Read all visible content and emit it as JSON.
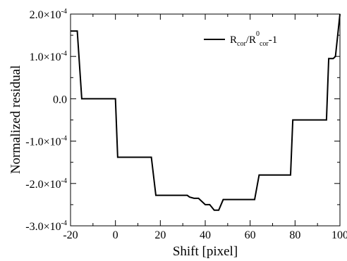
{
  "chart_data": {
    "type": "line",
    "title": "",
    "xlabel": "Shift [pixel]",
    "ylabel": "Normalized residual",
    "xlim": [
      -20,
      100
    ],
    "ylim": [
      -0.0003,
      0.0002
    ],
    "grid": false,
    "legend_position": "top-right",
    "x_ticks": [
      {
        "value": -20,
        "label": "-20"
      },
      {
        "value": 0,
        "label": "0"
      },
      {
        "value": 20,
        "label": "20"
      },
      {
        "value": 40,
        "label": "40"
      },
      {
        "value": 60,
        "label": "60"
      },
      {
        "value": 80,
        "label": "80"
      },
      {
        "value": 100,
        "label": "100"
      }
    ],
    "y_ticks": [
      {
        "value": 0.0002,
        "mant": "2.0",
        "exp": "-4"
      },
      {
        "value": 0.0001,
        "mant": "1.0",
        "exp": "-4"
      },
      {
        "value": 0.0,
        "mant": "0.0",
        "exp": ""
      },
      {
        "value": -0.0001,
        "mant": "-1.0",
        "exp": "-4"
      },
      {
        "value": -0.0002,
        "mant": "-2.0",
        "exp": "-4"
      },
      {
        "value": -0.0003,
        "mant": "-3.0",
        "exp": "-4"
      }
    ],
    "legend": {
      "label_parts": [
        {
          "text": "R",
          "style": "normal"
        },
        {
          "text": "cor",
          "style": "sub"
        },
        {
          "text": "/R",
          "style": "normal"
        },
        {
          "text": "0",
          "style": "sup"
        },
        {
          "text": "cor",
          "style": "sub"
        },
        {
          "text": "-1",
          "style": "normal"
        }
      ]
    },
    "series": [
      {
        "color": "#000000",
        "x": [
          -20,
          -17,
          -15,
          -12,
          -8,
          0,
          1,
          8,
          16,
          18,
          25,
          32,
          33,
          35,
          37,
          40,
          42,
          44,
          46,
          48,
          53,
          55,
          62,
          64,
          70,
          78,
          79,
          85,
          94,
          95,
          97,
          98,
          100
        ],
        "y": [
          0.00016,
          0.00016,
          0.0,
          0.0,
          0.0,
          0.0,
          -0.000138,
          -0.000138,
          -0.000138,
          -0.000228,
          -0.000228,
          -0.000228,
          -0.000232,
          -0.000235,
          -0.000235,
          -0.00025,
          -0.00025,
          -0.000263,
          -0.000263,
          -0.000238,
          -0.000238,
          -0.000238,
          -0.000238,
          -0.00018,
          -0.00018,
          -0.00018,
          -5e-05,
          -5e-05,
          -5e-05,
          9.5e-05,
          9.5e-05,
          0.0001,
          0.0002
        ]
      }
    ]
  }
}
